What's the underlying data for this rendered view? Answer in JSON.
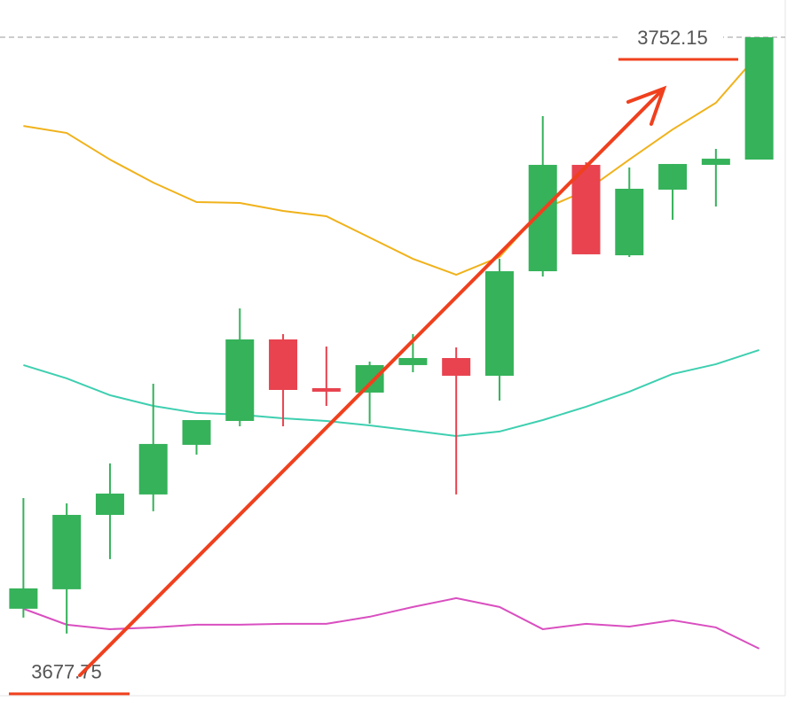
{
  "chart_data": {
    "type": "candlestick",
    "categories": [
      null,
      null,
      null,
      null,
      null,
      null,
      null,
      null,
      null,
      null,
      null,
      null,
      null,
      null,
      null,
      null,
      null,
      null
    ],
    "open": [
      3680.85,
      3683.28,
      3692.56,
      3695.11,
      3701.3,
      3704.28,
      3714.45,
      3708.37,
      3707.82,
      3711.25,
      3712.13,
      3709.92,
      3722.96,
      3736.23,
      3724.95,
      3733.14,
      3736.23,
      3736.89
    ],
    "high": [
      3694.66,
      3694.0,
      3698.98,
      3708.92,
      3704.39,
      3718.32,
      3715.12,
      3713.57,
      3711.69,
      3715.12,
      3713.46,
      3724.51,
      3742.31,
      3736.56,
      3735.9,
      3736.34,
      3738.22,
      3752.15
    ],
    "low": [
      3679.74,
      3677.75,
      3687.04,
      3693.01,
      3700.08,
      3703.62,
      3703.62,
      3706.16,
      3703.95,
      3710.36,
      3695.11,
      3706.82,
      3722.3,
      3725.07,
      3724.73,
      3729.38,
      3731.03,
      3736.89
    ],
    "close": [
      3683.39,
      3692.56,
      3695.22,
      3701.41,
      3704.39,
      3714.45,
      3708.15,
      3707.93,
      3711.25,
      3712.13,
      3709.92,
      3722.96,
      3736.23,
      3725.07,
      3733.25,
      3736.34,
      3737.0,
      3752.15
    ],
    "up_color": "#35b25a",
    "down_color": "#e8434f",
    "lines": [
      {
        "color": "#f0b21b",
        "values": [
          3741.09,
          3740.21,
          3736.89,
          3734.02,
          3731.59,
          3731.48,
          3730.48,
          3729.82,
          3727.17,
          3724.51,
          3722.52,
          3724.73,
          3730.7,
          3733.02,
          3736.89,
          3740.65,
          3743.97,
          3750.16
        ]
      },
      {
        "color": "#3ecfb0",
        "values": [
          3711.25,
          3709.59,
          3707.49,
          3706.16,
          3705.28,
          3705.06,
          3704.61,
          3704.28,
          3703.73,
          3703.07,
          3702.4,
          3702.96,
          3704.39,
          3706.05,
          3707.93,
          3710.14,
          3711.36,
          3713.13
        ]
      },
      {
        "color": "#d94fc0",
        "values": [
          3680.85,
          3678.86,
          3678.3,
          3678.52,
          3678.86,
          3678.86,
          3678.97,
          3678.97,
          3679.85,
          3681.07,
          3682.17,
          3681.07,
          3678.3,
          3678.97,
          3678.63,
          3679.41,
          3678.52,
          3675.87
        ]
      }
    ],
    "ylim": [
      3670,
      3756.8
    ],
    "annotations": [
      {
        "label": "3752.15",
        "value": 3752.15
      },
      {
        "label": "3677.75",
        "value": 3677.75
      }
    ]
  }
}
